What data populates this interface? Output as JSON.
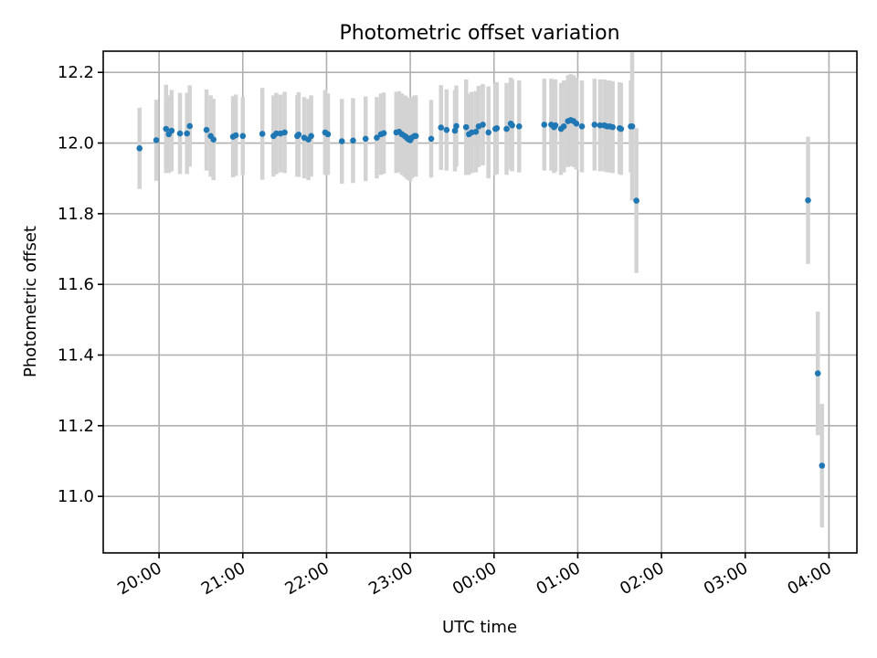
{
  "chart_data": {
    "type": "scatter",
    "title": "Photometric offset variation",
    "xlabel": "UTC time",
    "ylabel": "Photometric offset",
    "x_start_date": "2000-01-01",
    "xlim": [
      "2000-01-01T19:20:00",
      "2000-01-02T04:20:00"
    ],
    "ylim": [
      10.84,
      12.26
    ],
    "x_ticks": [
      {
        "value": "2000-01-01T20:00:00",
        "label": "20:00"
      },
      {
        "value": "2000-01-01T21:00:00",
        "label": "21:00"
      },
      {
        "value": "2000-01-01T22:00:00",
        "label": "22:00"
      },
      {
        "value": "2000-01-01T23:00:00",
        "label": "23:00"
      },
      {
        "value": "2000-01-02T00:00:00",
        "label": "00:00"
      },
      {
        "value": "2000-01-02T01:00:00",
        "label": "01:00"
      },
      {
        "value": "2000-01-02T02:00:00",
        "label": "02:00"
      },
      {
        "value": "2000-01-02T03:00:00",
        "label": "03:00"
      },
      {
        "value": "2000-01-02T04:00:00",
        "label": "04:00"
      }
    ],
    "y_ticks": [
      {
        "value": 11.0,
        "label": "11.0"
      },
      {
        "value": 11.2,
        "label": "11.2"
      },
      {
        "value": 11.4,
        "label": "11.4"
      },
      {
        "value": 11.6,
        "label": "11.6"
      },
      {
        "value": 11.8,
        "label": "11.8"
      },
      {
        "value": 12.0,
        "label": "12.0"
      },
      {
        "value": 12.2,
        "label": "12.2"
      }
    ],
    "grid": true,
    "x_tick_rotation_deg": 30,
    "colors": {
      "point": "#1f77b4",
      "errorbar": "#d3d3d3",
      "grid": "#b0b0b0"
    },
    "series": [
      {
        "x": [
          "2000-01-01T19:46:00",
          "2000-01-01T19:58:00",
          "2000-01-01T20:05:00",
          "2000-01-01T20:07:00",
          "2000-01-01T20:09:00",
          "2000-01-01T20:15:00",
          "2000-01-01T20:20:00",
          "2000-01-01T20:22:00",
          "2000-01-01T20:34:00",
          "2000-01-01T20:37:00",
          "2000-01-01T20:39:00",
          "2000-01-01T20:53:00",
          "2000-01-01T20:55:00",
          "2000-01-01T21:00:00",
          "2000-01-01T21:14:00",
          "2000-01-01T21:22:00",
          "2000-01-01T21:24:00",
          "2000-01-01T21:27:00",
          "2000-01-01T21:30:00",
          "2000-01-01T21:39:00",
          "2000-01-01T21:40:00",
          "2000-01-01T21:44:00",
          "2000-01-01T21:47:00",
          "2000-01-01T21:49:00",
          "2000-01-01T21:59:00",
          "2000-01-01T22:01:00",
          "2000-01-01T22:11:00",
          "2000-01-01T22:19:00",
          "2000-01-01T22:28:00",
          "2000-01-01T22:36:00",
          "2000-01-01T22:39:00",
          "2000-01-01T22:41:00",
          "2000-01-01T22:50:00",
          "2000-01-01T22:52:00",
          "2000-01-01T22:54:00",
          "2000-01-01T22:56:00",
          "2000-01-01T22:57:00",
          "2000-01-01T22:58:00",
          "2000-01-01T22:59:00",
          "2000-01-01T23:00:00",
          "2000-01-01T23:01:00",
          "2000-01-01T23:03:00",
          "2000-01-01T23:04:00",
          "2000-01-01T23:15:00",
          "2000-01-01T23:22:00",
          "2000-01-01T23:26:00",
          "2000-01-01T23:32:00",
          "2000-01-01T23:33:00",
          "2000-01-01T23:40:00",
          "2000-01-01T23:42:00",
          "2000-01-01T23:44:00",
          "2000-01-01T23:47:00",
          "2000-01-01T23:49:00",
          "2000-01-01T23:52:00",
          "2000-01-01T23:56:00",
          "2000-01-02T00:01:00",
          "2000-01-02T00:02:00",
          "2000-01-02T00:09:00",
          "2000-01-02T00:12:00",
          "2000-01-02T00:13:00",
          "2000-01-02T00:18:00",
          "2000-01-02T00:36:00",
          "2000-01-02T00:41:00",
          "2000-01-02T00:43:00",
          "2000-01-02T00:44:00",
          "2000-01-02T00:48:00",
          "2000-01-02T00:50:00",
          "2000-01-02T00:53:00",
          "2000-01-02T00:55:00",
          "2000-01-02T00:57:00",
          "2000-01-02T00:59:00",
          "2000-01-02T01:03:00",
          "2000-01-02T01:12:00",
          "2000-01-02T01:16:00",
          "2000-01-02T01:19:00",
          "2000-01-02T01:21:00",
          "2000-01-02T01:23:00",
          "2000-01-02T01:25:00",
          "2000-01-02T01:30:00",
          "2000-01-02T01:31:00",
          "2000-01-02T01:38:00",
          "2000-01-02T01:39:00",
          "2000-01-02T01:42:00",
          "2000-01-02T03:45:00",
          "2000-01-02T03:52:00",
          "2000-01-02T03:55:00"
        ],
        "y": [
          11.985,
          12.008,
          12.04,
          12.025,
          12.035,
          12.027,
          12.027,
          12.048,
          12.037,
          12.02,
          12.01,
          12.018,
          12.022,
          12.02,
          12.026,
          12.02,
          12.027,
          12.027,
          12.03,
          12.02,
          12.024,
          12.015,
          12.01,
          12.02,
          12.03,
          12.025,
          12.005,
          12.007,
          12.012,
          12.015,
          12.025,
          12.028,
          12.03,
          12.032,
          12.025,
          12.02,
          12.017,
          12.013,
          12.01,
          12.008,
          12.015,
          12.02,
          12.02,
          12.012,
          12.044,
          12.037,
          12.035,
          12.048,
          12.045,
          12.025,
          12.03,
          12.032,
          12.047,
          12.052,
          12.03,
          12.04,
          12.042,
          12.04,
          12.055,
          12.05,
          12.047,
          12.052,
          12.052,
          12.045,
          12.05,
          12.04,
          12.047,
          12.062,
          12.065,
          12.062,
          12.055,
          12.047,
          12.052,
          12.05,
          12.05,
          12.047,
          12.047,
          12.045,
          12.042,
          12.04,
          12.047,
          12.047,
          11.837,
          11.838,
          11.348,
          11.087
        ],
        "err": [
          0.115,
          0.115,
          0.125,
          0.11,
          0.115,
          0.115,
          0.115,
          0.115,
          0.115,
          0.115,
          0.115,
          0.115,
          0.115,
          0.11,
          0.13,
          0.115,
          0.115,
          0.11,
          0.115,
          0.115,
          0.12,
          0.115,
          0.115,
          0.115,
          0.12,
          0.115,
          0.12,
          0.12,
          0.12,
          0.115,
          0.115,
          0.115,
          0.115,
          0.115,
          0.115,
          0.115,
          0.115,
          0.115,
          0.115,
          0.115,
          0.115,
          0.115,
          0.115,
          0.11,
          0.12,
          0.115,
          0.115,
          0.115,
          0.135,
          0.115,
          0.115,
          0.115,
          0.115,
          0.115,
          0.13,
          0.13,
          0.13,
          0.13,
          0.13,
          0.13,
          0.13,
          0.13,
          0.13,
          0.13,
          0.13,
          0.13,
          0.13,
          0.13,
          0.13,
          0.13,
          0.13,
          0.13,
          0.13,
          0.13,
          0.13,
          0.13,
          0.13,
          0.13,
          0.13,
          0.13,
          0.13,
          0.21,
          0.205,
          0.18,
          0.175,
          0.175
        ]
      }
    ]
  }
}
